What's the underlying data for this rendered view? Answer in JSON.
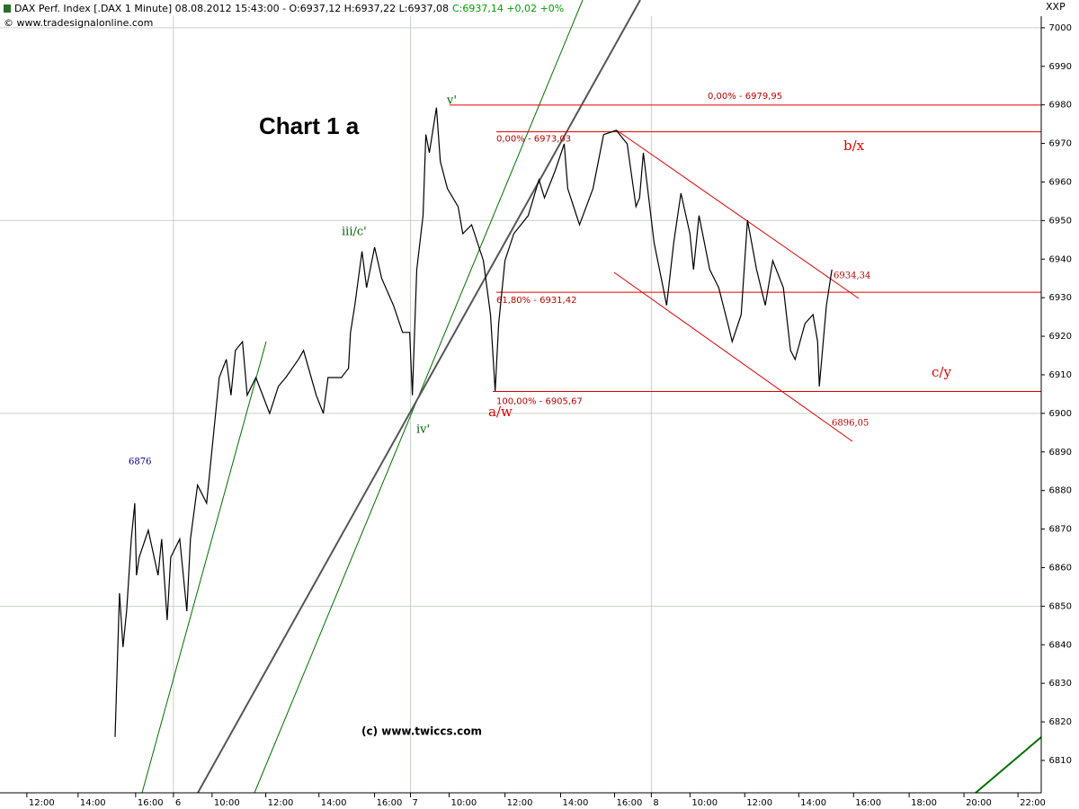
{
  "chart_data": {
    "type": "line",
    "header": {
      "info": "DAX Perf. Index [.DAX  1 Minute] 08.08.2012 15:43:00 - O:6937,12 H:6937,22 L:6937,08",
      "change": "C:6937,14 +0,02 +0%",
      "source": "© www.tradesignalonline.com",
      "corner": "XXP"
    },
    "title": "Chart 1 a",
    "copyright": "(c) www.twiccs.com",
    "color": "#000000",
    "x": [
      4.2,
      4.26,
      4.36,
      4.49,
      4.62,
      4.79,
      4.92,
      4.98,
      5.08,
      5.41,
      5.77,
      5.9,
      6.1,
      6.23,
      6.56,
      6.82,
      6.95,
      7.21,
      7.54,
      7.87,
      8.0,
      8.26,
      8.43,
      8.59,
      8.85,
      9.02,
      9.34,
      9.84,
      10.16,
      10.43,
      10.89,
      11.08,
      11.54,
      11.8,
      11.97,
      12.46,
      12.72,
      12.79,
      12.95,
      13.21,
      13.38,
      13.67,
      13.93,
      14.36,
      14.69,
      14.95,
      15.05,
      15.21,
      15.44,
      15.54,
      15.67,
      15.93,
      16.07,
      16.33,
      16.72,
      16.89,
      17.21,
      17.64,
      17.9,
      18.07,
      18.2,
      18.43,
      18.75,
      19.28,
      19.67,
      19.87,
      20.26,
      20.59,
      20.72,
      21.15,
      21.64,
      22.03,
      22.49,
      22.89,
      23.21,
      23.34,
      23.48,
      23.87,
      24.2,
      24.33,
      24.59,
      24.85,
      25.18,
      25.31,
      25.51,
      25.9,
      26.23,
      26.56,
      26.72,
      27.05,
      27.28,
      27.61,
      27.93,
      28.2,
      28.59,
      28.85,
      29.02,
      29.38,
      29.67,
      29.84,
      29.9,
      30.16,
      30.36
    ],
    "values": [
      6816.1,
      6830.1,
      6853.4,
      6839.4,
      6848.7,
      6867.4,
      6876.7,
      6858.0,
      6862.7,
      6869.7,
      6858.0,
      6867.4,
      6846.4,
      6862.7,
      6867.4,
      6848.7,
      6867.4,
      6881.4,
      6876.7,
      6900.0,
      6909.3,
      6914.0,
      6904.7,
      6916.3,
      6918.6,
      6904.7,
      6909.3,
      6900.0,
      6907.0,
      6909.3,
      6914.0,
      6916.3,
      6904.7,
      6900.0,
      6909.3,
      6909.3,
      6911.7,
      6921.0,
      6928.0,
      6942.0,
      6932.6,
      6943.1,
      6935.0,
      6928.0,
      6921.0,
      6921.0,
      6904.7,
      6937.3,
      6951.3,
      6972.3,
      6967.6,
      6979.3,
      6965.3,
      6958.3,
      6953.6,
      6946.6,
      6948.9,
      6939.6,
      6925.6,
      6905.8,
      6923.3,
      6939.6,
      6946.6,
      6951.3,
      6960.6,
      6955.9,
      6962.9,
      6969.9,
      6958.3,
      6948.9,
      6958.3,
      6972.3,
      6973.4,
      6969.9,
      6953.6,
      6955.9,
      6967.6,
      6944.3,
      6932.6,
      6928.0,
      6944.3,
      6957.1,
      6946.6,
      6937.3,
      6951.3,
      6937.3,
      6932.6,
      6923.3,
      6918.6,
      6925.6,
      6950.1,
      6937.3,
      6928.0,
      6939.6,
      6932.6,
      6916.3,
      6914.0,
      6923.3,
      6925.6,
      6918.6,
      6907.0,
      6928.0,
      6937.3
    ],
    "xlim": [
      0,
      38
    ],
    "xticks": [
      {
        "value": 0.98,
        "label": "12:00"
      },
      {
        "value": 2.85,
        "label": "14:00"
      },
      {
        "value": 4.95,
        "label": "16:00"
      },
      {
        "value": 6.33,
        "label": "6"
      },
      {
        "value": 7.74,
        "label": "10:00"
      },
      {
        "value": 9.7,
        "label": "12:00"
      },
      {
        "value": 11.64,
        "label": "14:00"
      },
      {
        "value": 13.67,
        "label": "16:00"
      },
      {
        "value": 14.98,
        "label": "7"
      },
      {
        "value": 16.39,
        "label": "10:00"
      },
      {
        "value": 18.43,
        "label": "12:00"
      },
      {
        "value": 20.46,
        "label": "14:00"
      },
      {
        "value": 22.43,
        "label": "16:00"
      },
      {
        "value": 23.77,
        "label": "8"
      },
      {
        "value": 25.18,
        "label": "10:00"
      },
      {
        "value": 27.18,
        "label": "12:00"
      },
      {
        "value": 29.15,
        "label": "14:00"
      },
      {
        "value": 31.15,
        "label": "16:00"
      },
      {
        "value": 33.18,
        "label": "18:00"
      },
      {
        "value": 35.18,
        "label": "20:00"
      },
      {
        "value": 37.15,
        "label": "22:00"
      }
    ],
    "ylim": [
      6801.6,
      7003
    ],
    "yticks": [
      6810,
      6820,
      6830,
      6840,
      6850,
      6860,
      6870,
      6880,
      6890,
      6900,
      6910,
      6920,
      6930,
      6940,
      6950,
      6960,
      6970,
      6980,
      6990,
      7000
    ],
    "levels": [
      {
        "label": "0,00% - 6979,95",
        "value": 6979.95
      },
      {
        "label": "0,00% - 6973,03",
        "value": 6973.03
      },
      {
        "label": "61,80% - 6931,42",
        "value": 6931.42
      },
      {
        "label": "100,00% - 6905,67",
        "value": 6905.67
      }
    ],
    "annotations": [
      "v'",
      "iii/c'",
      "iv'",
      "a/w",
      "b/x",
      "c/y",
      "6876",
      "6934,34",
      "6896,05"
    ]
  }
}
